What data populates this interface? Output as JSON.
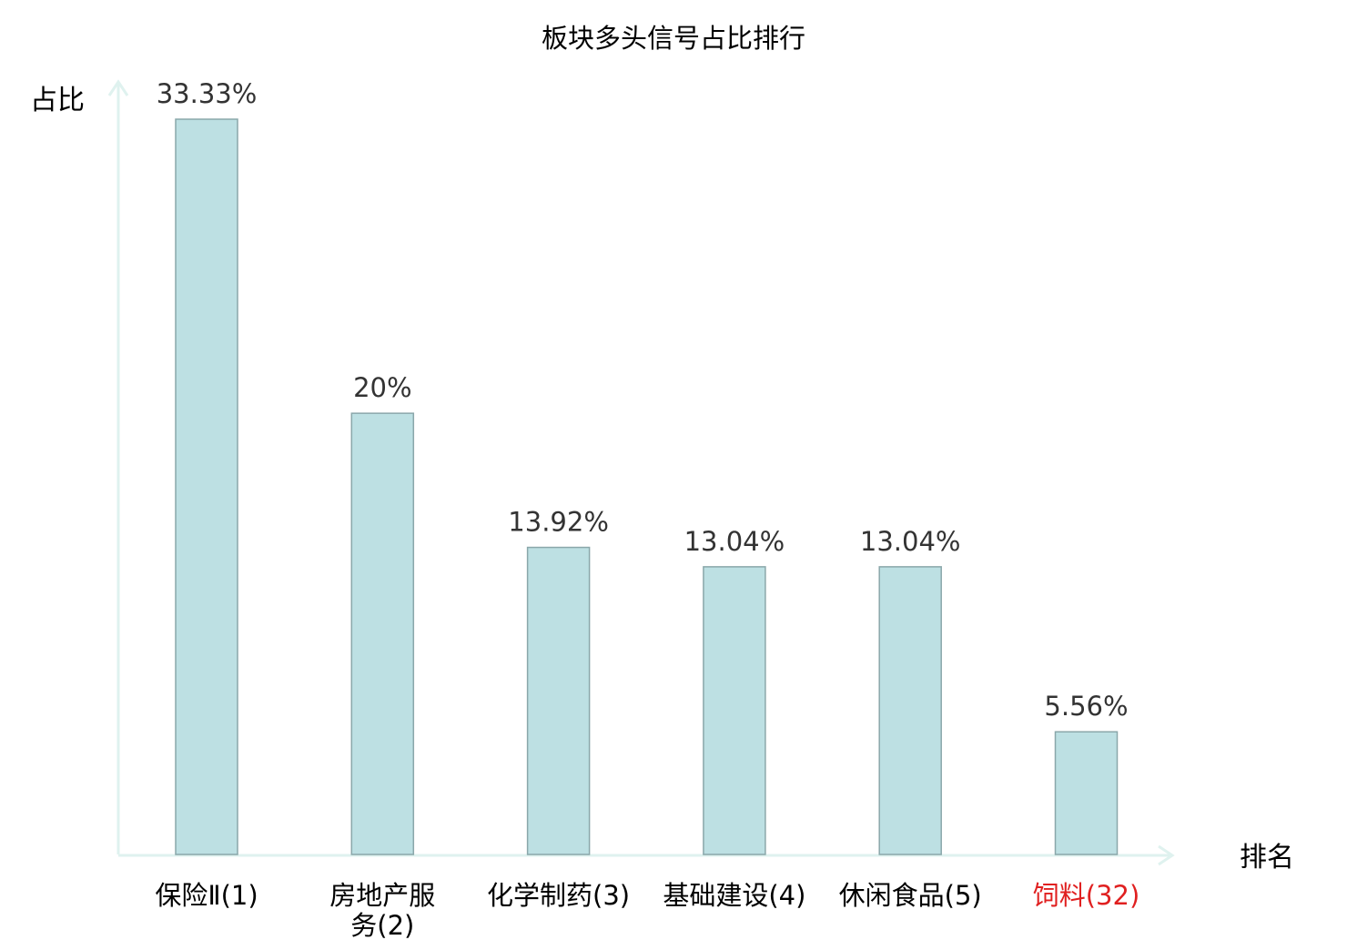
{
  "chart_data": {
    "type": "bar",
    "title": "板块多头信号占比排行",
    "ylabel": "占比",
    "xlabel": "排名",
    "categories": [
      [
        "保险Ⅱ(1)"
      ],
      [
        "房地产服",
        "务(2)"
      ],
      [
        "化学制药(3)"
      ],
      [
        "基础建设(4)"
      ],
      [
        "休闲食品(5)"
      ],
      [
        "饲料(32)"
      ]
    ],
    "values": [
      33.33,
      20,
      13.92,
      13.04,
      13.04,
      5.56
    ],
    "value_labels": [
      "33.33%",
      "20%",
      "13.92%",
      "13.04%",
      "13.04%",
      "5.56%"
    ],
    "highlight_index": 5,
    "ylim": [
      0,
      34.5
    ],
    "grid": false,
    "legend": "none",
    "colors": {
      "bar_fill": "#bde0e3",
      "bar_stroke": "#8aa7aa",
      "axis": "#dff2ef",
      "label": "#000000",
      "value_label": "#333333",
      "highlight": "#e02020"
    }
  }
}
